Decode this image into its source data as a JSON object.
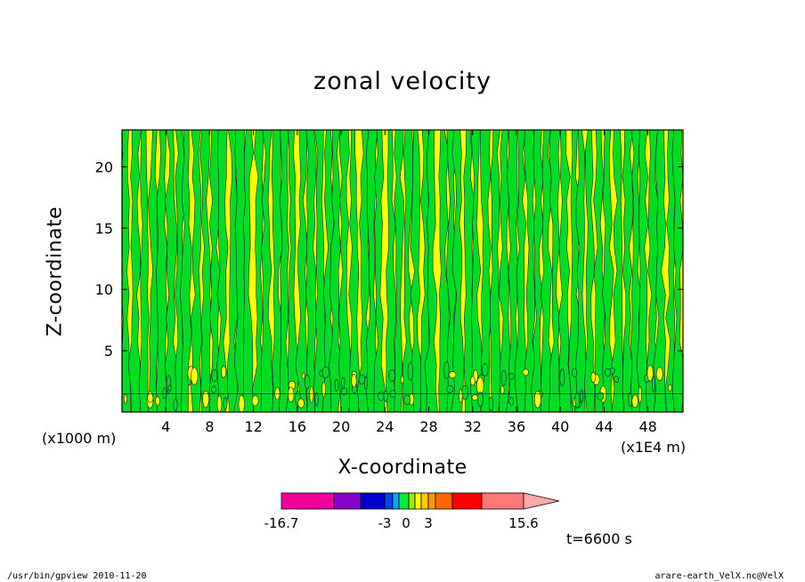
{
  "chart_data": {
    "type": "heatmap",
    "title": "zonal velocity",
    "xlabel": "X-coordinate",
    "ylabel": "Z-coordinate",
    "x_unit": "(x1E4 m)",
    "y_unit": "(x1000 m)",
    "x_ticks": [
      "4",
      "8",
      "12",
      "16",
      "20",
      "24",
      "28",
      "32",
      "36",
      "40",
      "44",
      "48"
    ],
    "y_ticks": [
      "5",
      "10",
      "15",
      "20"
    ],
    "x_tick_values": [
      4,
      8,
      12,
      16,
      20,
      24,
      28,
      32,
      36,
      40,
      44,
      48
    ],
    "y_tick_values": [
      5,
      10,
      15,
      20
    ],
    "xlim": [
      0,
      51.2
    ],
    "ylim": [
      0,
      23
    ],
    "dominant_levels": [
      {
        "range": [
          -3,
          0
        ],
        "color": "#00dd22"
      },
      {
        "range": [
          0,
          3
        ],
        "color": "#ffff00"
      }
    ],
    "colorbar": {
      "colors": [
        "#ee0099",
        "#8800cc",
        "#0000cc",
        "#0044ee",
        "#00aaff",
        "#00ee33",
        "#99ee00",
        "#ffff00",
        "#ffcc00",
        "#ff9900",
        "#ff6600",
        "#ff0000",
        "#ff7777",
        "#ffaaaa"
      ],
      "labels": [
        "-16.7",
        "-3",
        "0",
        "3",
        "15.6"
      ],
      "label_values": [
        -16.7,
        -3,
        0,
        3,
        15.6
      ]
    },
    "time_label": "t=6600 s"
  },
  "footer": {
    "left": "/usr/bin/gpview   2010-11-20",
    "right": "arare-earth_VelX.nc@VelX"
  }
}
